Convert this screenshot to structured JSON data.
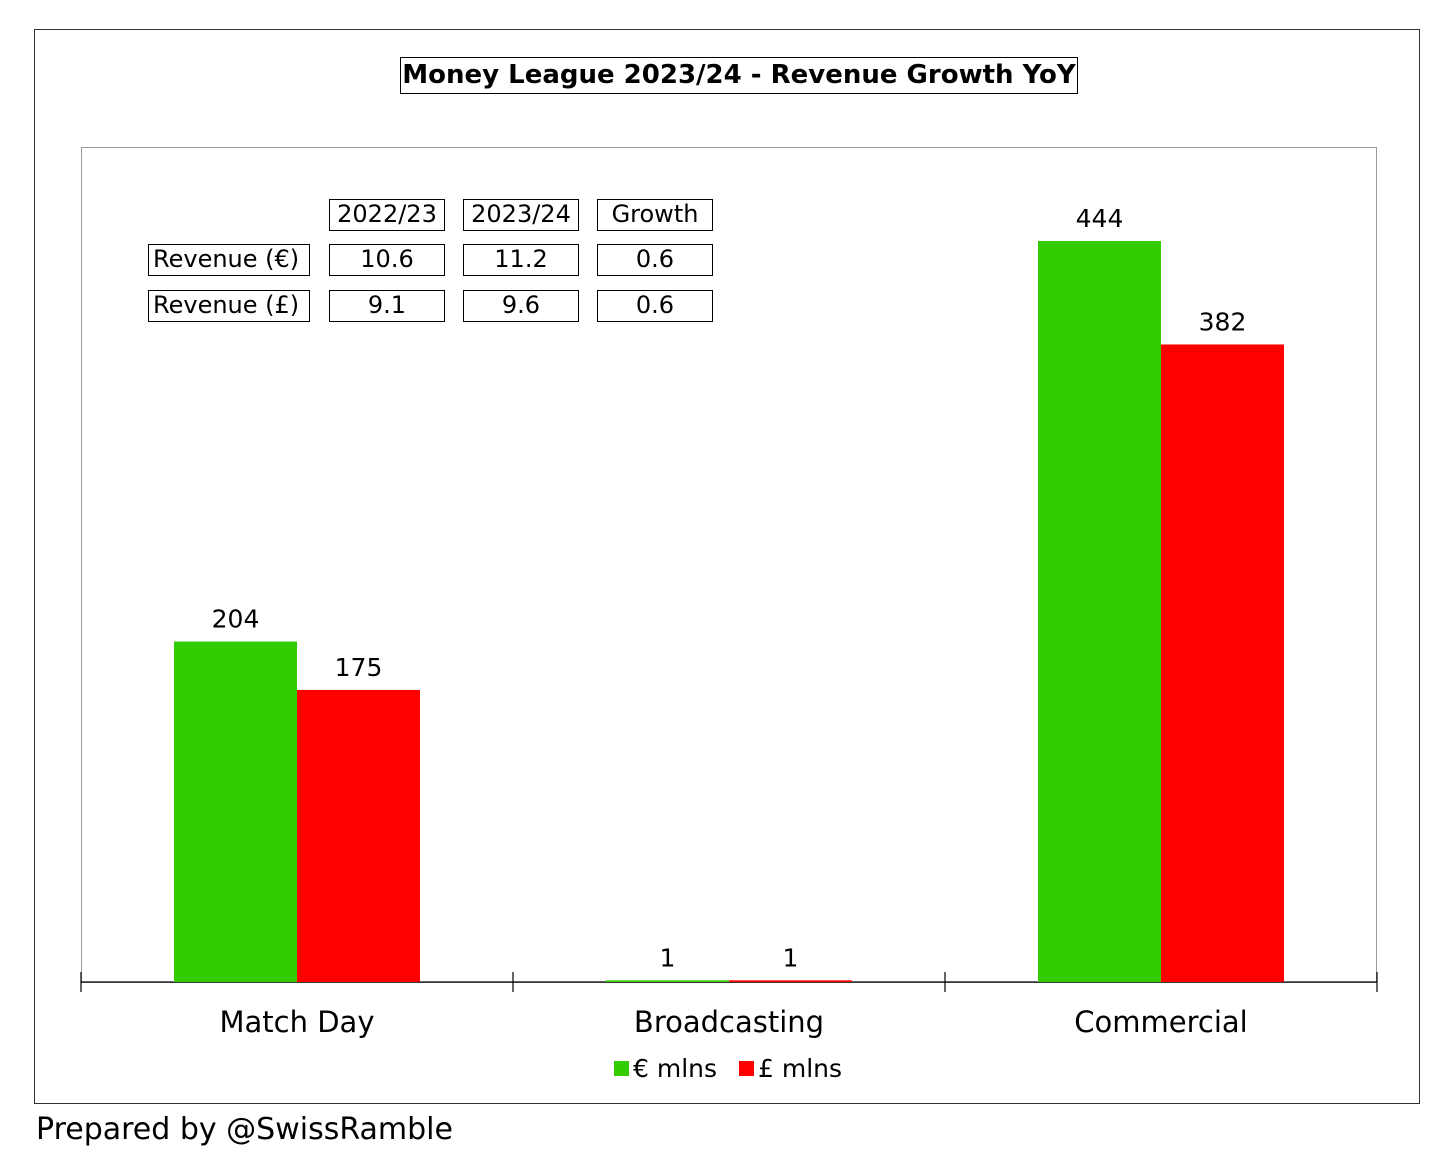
{
  "chart_data": {
    "type": "bar",
    "title": "Money League 2023/24 - Revenue Growth YoY",
    "categories": [
      "Match Day",
      "Broadcasting",
      "Commercial"
    ],
    "series": [
      {
        "name": "€ mlns",
        "color": "#33cc00",
        "values": [
          204,
          1,
          444
        ]
      },
      {
        "name": "£ mlns",
        "color": "#ff0000",
        "values": [
          175,
          1,
          382
        ]
      }
    ],
    "ylim": [
      0,
      500
    ],
    "grid": false,
    "legend_position": "bottom",
    "inset_table": {
      "headers": [
        "2022/23",
        "2023/24",
        "Growth"
      ],
      "rows": [
        {
          "label": "Revenue (€)",
          "values": [
            "10.6",
            "11.2",
            "0.6"
          ]
        },
        {
          "label": "Revenue (£)",
          "values": [
            "9.1",
            "9.6",
            "0.6"
          ]
        }
      ]
    }
  },
  "footer": "Prepared by @SwissRamble"
}
